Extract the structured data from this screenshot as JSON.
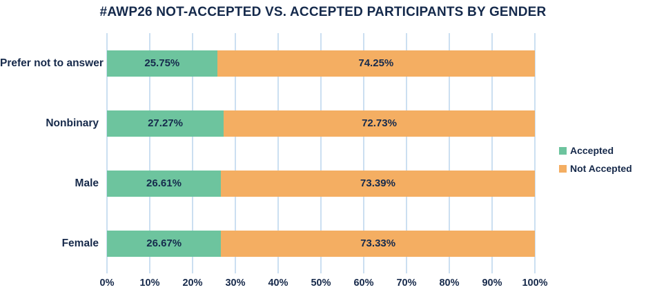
{
  "chart_data": {
    "type": "bar",
    "orientation": "horizontal",
    "stacked": true,
    "title": "#AWP26 NOT-ACCEPTED VS. ACCEPTED PARTICIPANTS BY GENDER",
    "categories": [
      "Prefer not to answer",
      "Nonbinary",
      "Male",
      "Female"
    ],
    "series": [
      {
        "name": "Accepted",
        "color": "#6DC49E",
        "values": [
          25.75,
          27.27,
          26.61,
          26.67
        ],
        "labels": [
          "25.75%",
          "27.27%",
          "26.61%",
          "26.67%"
        ]
      },
      {
        "name": "Not Accepted",
        "color": "#F4AE62",
        "values": [
          74.25,
          72.73,
          73.39,
          73.33
        ],
        "labels": [
          "74.25%",
          "72.73%",
          "73.39%",
          "73.33%"
        ]
      }
    ],
    "x_ticks": [
      "0%",
      "10%",
      "20%",
      "30%",
      "40%",
      "50%",
      "60%",
      "70%",
      "80%",
      "90%",
      "100%"
    ],
    "xlim": [
      0,
      100
    ],
    "grid": true,
    "legend_position": "right",
    "colors": {
      "text": "#16294A",
      "gridline": "#CBDFF1",
      "background": "#FFFFFF"
    }
  }
}
